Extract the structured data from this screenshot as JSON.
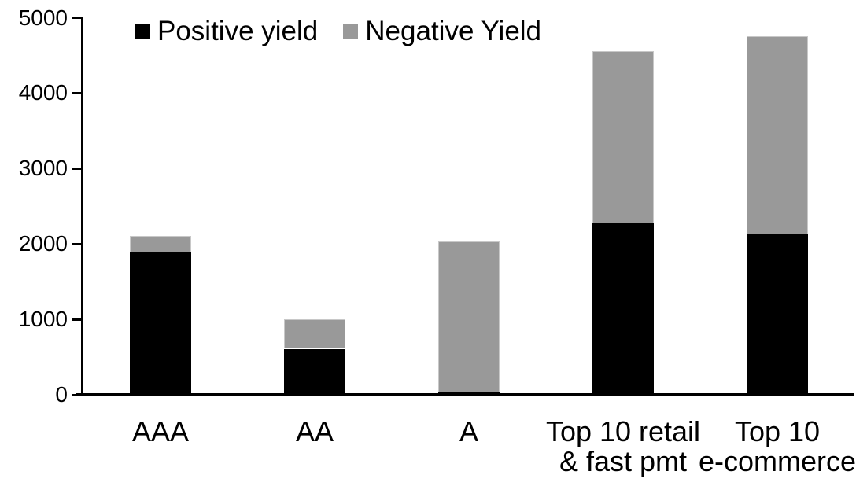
{
  "chart_data": {
    "type": "bar",
    "stacked": true,
    "title": "",
    "xlabel": "",
    "ylabel": "",
    "categories": [
      [
        "AAA"
      ],
      [
        "AA"
      ],
      [
        "A"
      ],
      [
        "Top 10 retail",
        "& fast pmt"
      ],
      [
        "Top 10",
        "e-commerce"
      ]
    ],
    "series": [
      {
        "name": "Positive yield",
        "color": "#000000",
        "values": [
          1890,
          610,
          40,
          2280,
          2140
        ]
      },
      {
        "name": "Negative Yield",
        "color": "#999999",
        "values": [
          220,
          390,
          1990,
          2280,
          2620
        ]
      }
    ],
    "totals": [
      2110,
      1000,
      2030,
      4560,
      4760
    ],
    "ylim": [
      0,
      5000
    ],
    "yticks": [
      "0",
      "1000",
      "2000",
      "3000",
      "4000",
      "5000"
    ],
    "ytick_interval": 1000,
    "legend_position": "top-left-inside",
    "grid": false,
    "axis_color": "#000000",
    "bar_border_color": "#c8c8c8",
    "background_color": "#ffffff"
  }
}
